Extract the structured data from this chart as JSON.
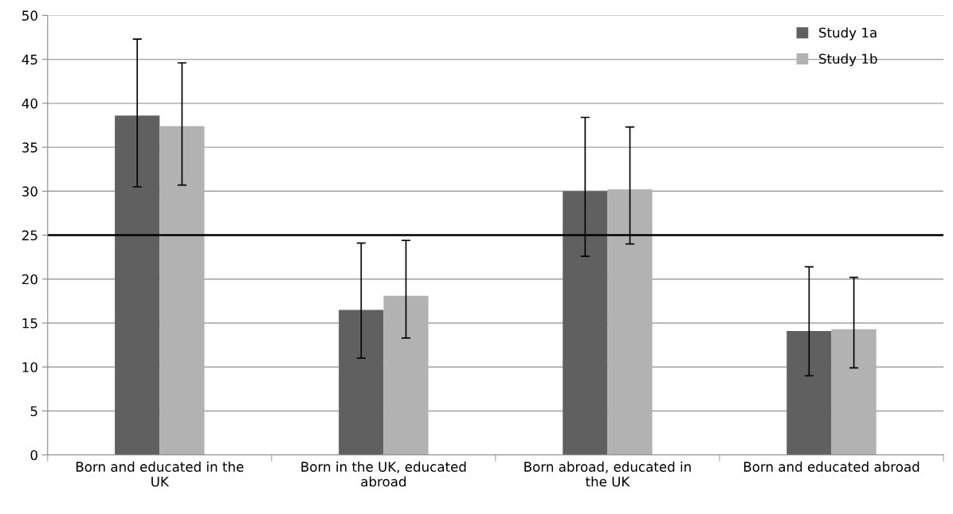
{
  "chart_data": {
    "type": "bar",
    "categories": [
      "Born and educated in the UK",
      "Born in the UK, educated abroad",
      "Born abroad, educated in the UK",
      "Born and educated abroad"
    ],
    "series": [
      {
        "name": "Study 1a",
        "color": "#606060",
        "values": [
          38.6,
          16.5,
          30.0,
          14.1
        ],
        "errors": [
          [
            30.5,
            47.3
          ],
          [
            11.0,
            24.1
          ],
          [
            22.6,
            38.4
          ],
          [
            9.0,
            21.4
          ]
        ]
      },
      {
        "name": "Study 1b",
        "color": "#b2b2b2",
        "values": [
          37.4,
          18.1,
          30.2,
          14.3
        ],
        "errors": [
          [
            30.7,
            44.6
          ],
          [
            13.3,
            24.4
          ],
          [
            24.0,
            37.3
          ],
          [
            9.9,
            20.2
          ]
        ]
      }
    ],
    "ylim": [
      0,
      50
    ],
    "yticks": [
      0,
      5,
      10,
      15,
      20,
      25,
      30,
      35,
      40,
      45,
      50
    ],
    "ref_lines": [
      {
        "axis": "y",
        "value": 25,
        "color": "#000000"
      }
    ],
    "grid": "y",
    "legend": "top right"
  }
}
